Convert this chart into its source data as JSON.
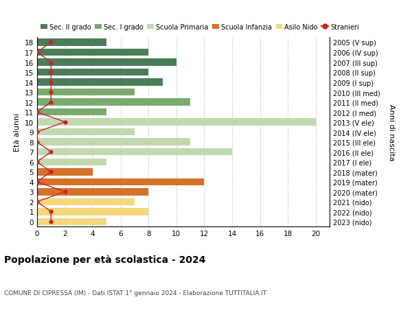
{
  "ages": [
    18,
    17,
    16,
    15,
    14,
    13,
    12,
    11,
    10,
    9,
    8,
    7,
    6,
    5,
    4,
    3,
    2,
    1,
    0
  ],
  "right_labels": [
    "2005 (V sup)",
    "2006 (IV sup)",
    "2007 (III sup)",
    "2008 (II sup)",
    "2009 (I sup)",
    "2010 (III med)",
    "2011 (II med)",
    "2012 (I med)",
    "2013 (V ele)",
    "2014 (IV ele)",
    "2015 (III ele)",
    "2016 (II ele)",
    "2017 (I ele)",
    "2018 (mater)",
    "2019 (mater)",
    "2020 (mater)",
    "2021 (nido)",
    "2022 (nido)",
    "2023 (nido)"
  ],
  "bar_values": [
    5,
    8,
    10,
    8,
    9,
    7,
    11,
    5,
    20,
    7,
    11,
    14,
    5,
    4,
    12,
    8,
    7,
    8,
    5
  ],
  "bar_colors": [
    "#4a7c59",
    "#4a7c59",
    "#4a7c59",
    "#4a7c59",
    "#4a7c59",
    "#7aab6e",
    "#7aab6e",
    "#7aab6e",
    "#c2d9b0",
    "#c2d9b0",
    "#c2d9b0",
    "#c2d9b0",
    "#c2d9b0",
    "#d4722a",
    "#d4722a",
    "#d4722a",
    "#f5d77e",
    "#f5d77e",
    "#f5d77e"
  ],
  "stranieri_values": [
    1,
    0,
    1,
    1,
    1,
    1,
    1,
    0,
    2,
    0,
    0,
    1,
    0,
    1,
    0,
    2,
    0,
    1,
    1
  ],
  "title": "Popolazione per età scolastica - 2024",
  "subtitle": "COMUNE DI CIPRESSA (IM) - Dati ISTAT 1° gennaio 2024 - Elaborazione TUTTITALIA.IT",
  "ylabel_left": "Età alunni",
  "ylabel_right": "Anni di nascita",
  "legend_labels": [
    "Sec. II grado",
    "Sec. I grado",
    "Scuola Primaria",
    "Scuola Infanzia",
    "Asilo Nido",
    "Stranieri"
  ],
  "legend_colors": [
    "#4a7c59",
    "#7aab6e",
    "#c2d9b0",
    "#d4722a",
    "#f5d77e",
    "#cc2222"
  ],
  "color_stranieri": "#cc2222",
  "bg_color": "#ffffff",
  "grid_color": "#cccccc",
  "xlim_max": 21,
  "xticks": [
    0,
    2,
    4,
    6,
    8,
    10,
    12,
    14,
    16,
    18,
    20
  ]
}
